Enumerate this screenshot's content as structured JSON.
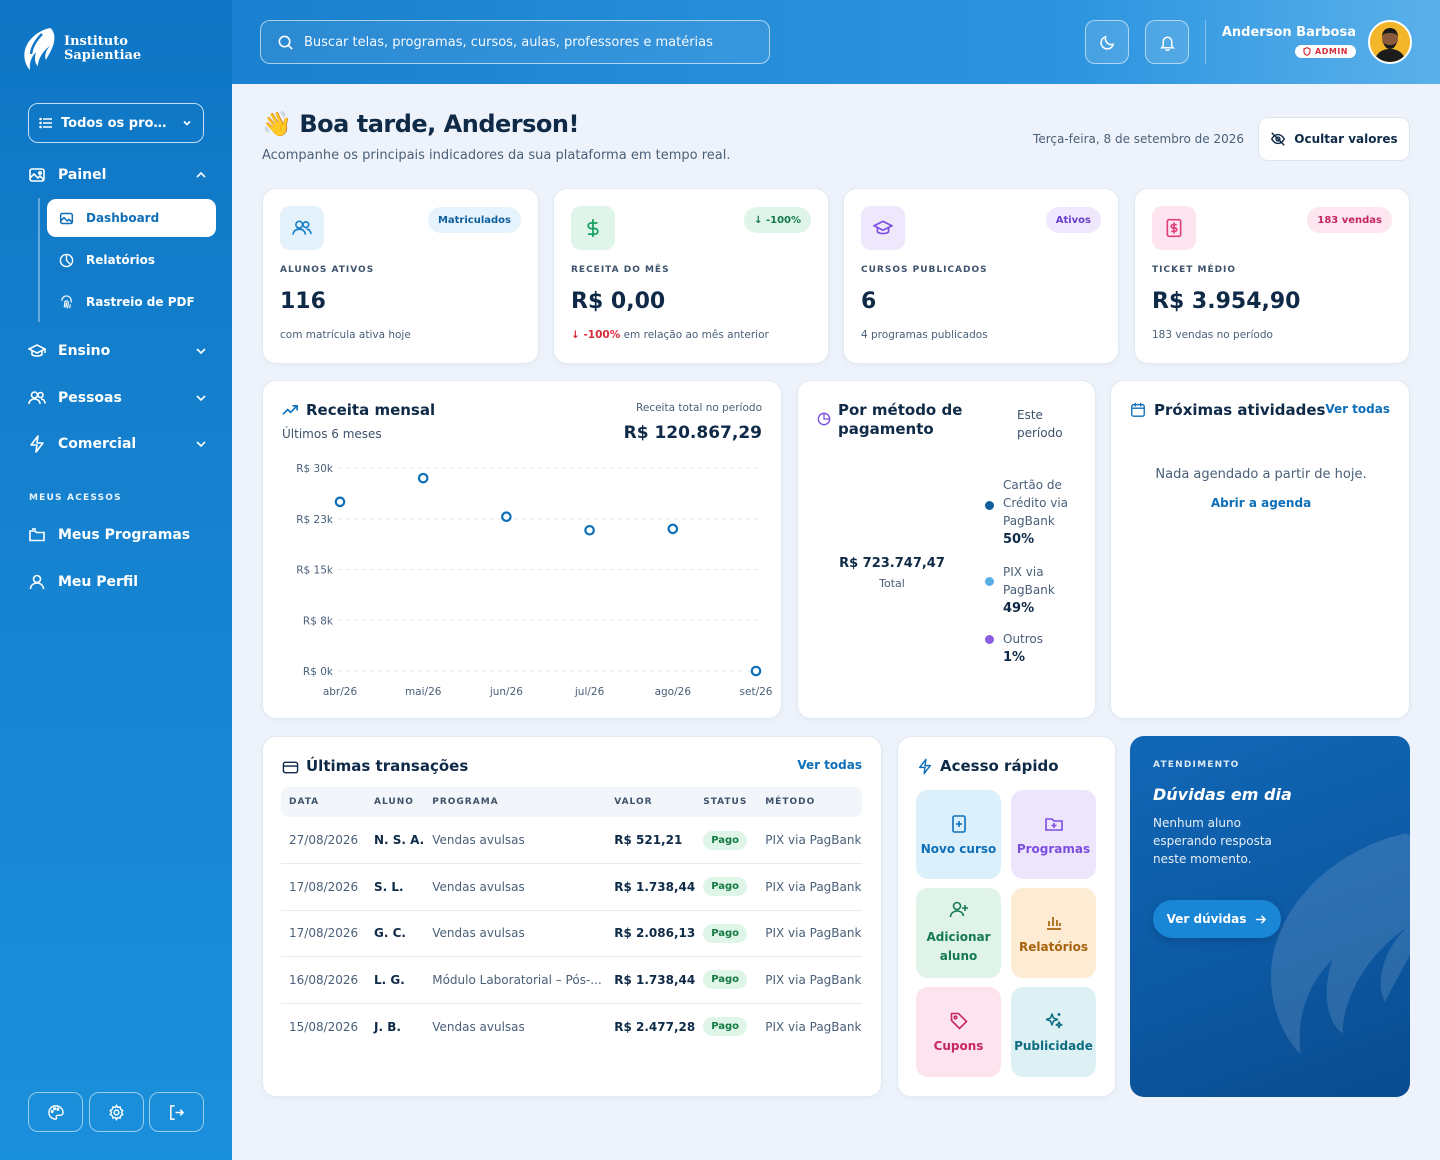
{
  "brand": {
    "line1": "Instituto",
    "line2": "Sapientiae",
    "logo_icon": "feather-flame-logo"
  },
  "sidebar": {
    "program_select": "Todos os prog...",
    "groups": [
      {
        "label": "Painel",
        "icon": "image-icon",
        "expanded": true
      },
      {
        "label": "Ensino",
        "icon": "graduation-cap-icon",
        "expanded": false
      },
      {
        "label": "Pessoas",
        "icon": "users-icon",
        "expanded": false
      },
      {
        "label": "Comercial",
        "icon": "zap-icon",
        "expanded": false
      }
    ],
    "painel_items": [
      {
        "label": "Dashboard",
        "active": true,
        "icon": "image-icon"
      },
      {
        "label": "Relatórios",
        "icon": "chart-pie-icon"
      },
      {
        "label": "Rastreio de PDF",
        "icon": "fingerprint-icon"
      }
    ],
    "section_title": "MEUS ACESSOS",
    "my_items": [
      {
        "label": "Meus Programas",
        "icon": "folders-icon"
      },
      {
        "label": "Meu Perfil",
        "icon": "user-icon"
      }
    ],
    "bottom_icons": [
      "palette-icon",
      "gear-icon",
      "logout-icon"
    ]
  },
  "header": {
    "search_placeholder": "Buscar telas, programas, cursos, aulas, professores e matérias",
    "user_name": "Anderson Barbosa",
    "user_role": "ADMIN"
  },
  "greeting": {
    "emoji": "👋",
    "title": "Boa tarde, Anderson!",
    "subtitle": "Acompanhe os principais indicadores da sua plataforma em tempo real.",
    "date": "Terça-feira, 8 de setembro de 2026",
    "hide_values_label": "Ocultar valores"
  },
  "stats": [
    {
      "label": "ALUNOS ATIVOS",
      "value": "116",
      "badge": "Matriculados",
      "sub": "com matrícula ativa hoje",
      "icon": "users-icon",
      "color": "#1a7fc9",
      "bg": "#e3f1fb",
      "badge_color": "#0e5f9e",
      "badge_bg": "#e6f3fc"
    },
    {
      "label": "RECEITA DO MÊS",
      "value": "R$ 0,00",
      "badge": "↓ -100%",
      "sub_strong": "↓ -100%",
      "sub": " em relação ao mês anterior",
      "icon": "dollar-icon",
      "color": "#17a063",
      "bg": "#dff5e9",
      "badge_color": "#127a49",
      "badge_bg": "#e0f5ea"
    },
    {
      "label": "CURSOS PUBLICADOS",
      "value": "6",
      "badge": "Ativos",
      "sub": "4 programas publicados",
      "icon": "graduation-cap-icon",
      "color": "#7c4ee0",
      "bg": "#efe8fc",
      "badge_color": "#6a3fd0",
      "badge_bg": "#efe8fc"
    },
    {
      "label": "TICKET MÉDIO",
      "value": "R$ 3.954,90",
      "badge": "183 vendas",
      "sub": "183 vendas no período",
      "icon": "receipt-dollar-icon",
      "color": "#e0407e",
      "bg": "#fde5ef",
      "badge_color": "#c52763",
      "badge_bg": "#fde6ef"
    }
  ],
  "revenue": {
    "title": "Receita mensal",
    "subtitle": "Últimos 6 meses",
    "total_label": "Receita total no período",
    "total_value": "R$ 120.867,29",
    "icon": "trending-up-icon"
  },
  "chart_data": {
    "type": "scatter",
    "x": [
      "abr/26",
      "mai/26",
      "jun/26",
      "jul/26",
      "ago/26",
      "set/26"
    ],
    "series": [
      {
        "values": [
          25000,
          28500,
          22800,
          20800,
          21000,
          0
        ]
      }
    ],
    "ytick_labels": [
      "R$ 30k",
      "R$ 23k",
      "R$ 15k",
      "R$ 8k",
      "R$ 0k"
    ],
    "ylim": [
      0,
      30000
    ],
    "grid": true,
    "color": "#0e6fb8"
  },
  "payment": {
    "title": "Por método de pagamento",
    "period": "Este período",
    "total_value": "R$ 723.747,47",
    "total_label": "Total",
    "icon": "chart-pie-icon",
    "items": [
      {
        "label": "Cartão de Crédito via PagBank",
        "pct": "50%",
        "color": "#0e5f9e"
      },
      {
        "label": "PIX via PagBank",
        "pct": "49%",
        "color": "#5aaee6"
      },
      {
        "label": "Outros",
        "pct": "1%",
        "color": "#8a5ce0"
      }
    ]
  },
  "activities": {
    "title": "Próximas atividades",
    "link": "Ver todas",
    "empty": "Nada agendado a partir de hoje.",
    "cta": "Abrir a agenda",
    "icon": "calendar-icon"
  },
  "transactions": {
    "title": "Últimas transações",
    "link": "Ver todas",
    "icon": "credit-card-icon",
    "headers": [
      "DATA",
      "ALUNO",
      "PROGRAMA",
      "VALOR",
      "STATUS",
      "MÉTODO"
    ],
    "rows": [
      {
        "date": "27/08/2026",
        "student": "N. S. A.",
        "program": "Vendas avulsas",
        "value": "R$ 521,21",
        "status": "Pago",
        "method": "PIX via PagBank"
      },
      {
        "date": "17/08/2026",
        "student": "S. L.",
        "program": "Vendas avulsas",
        "value": "R$ 1.738,44",
        "status": "Pago",
        "method": "PIX via PagBank"
      },
      {
        "date": "17/08/2026",
        "student": "G. C.",
        "program": "Vendas avulsas",
        "value": "R$ 2.086,13",
        "status": "Pago",
        "method": "PIX via PagBank"
      },
      {
        "date": "16/08/2026",
        "student": "L. G.",
        "program": "Módulo Laboratorial – Pós-...",
        "value": "R$ 1.738,44",
        "status": "Pago",
        "method": "PIX via PagBank"
      },
      {
        "date": "15/08/2026",
        "student": "J. B.",
        "program": "Vendas avulsas",
        "value": "R$ 2.477,28",
        "status": "Pago",
        "method": "PIX via PagBank"
      }
    ]
  },
  "quick_access": {
    "title": "Acesso rápido",
    "icon": "zap-icon",
    "items": [
      {
        "label": "Novo curso",
        "icon": "book-plus-icon",
        "color": "#0e6fb8",
        "bg": "#dcf0fb"
      },
      {
        "label": "Programas",
        "icon": "folder-plus-icon",
        "color": "#7c4ee0",
        "bg": "#ece5fb"
      },
      {
        "label": "Adicionar aluno",
        "icon": "user-plus-icon",
        "color": "#157a52",
        "bg": "#dff3e8"
      },
      {
        "label": "Relatórios",
        "icon": "bar-chart-icon",
        "color": "#a8620c",
        "bg": "#fdebd3"
      },
      {
        "label": "Cupons",
        "icon": "tag-icon",
        "color": "#c52763",
        "bg": "#fde3ee"
      },
      {
        "label": "Publicidade",
        "icon": "sparkles-icon",
        "color": "#0f6d82",
        "bg": "#ddf1f5"
      }
    ]
  },
  "support": {
    "eyebrow": "ATENDIMENTO",
    "title": "Dúvidas em dia",
    "text": "Nenhum aluno esperando resposta neste momento.",
    "cta": "Ver dúvidas"
  }
}
